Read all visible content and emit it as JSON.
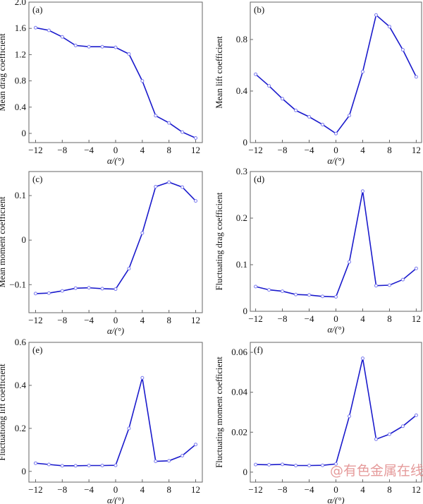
{
  "watermark": "@有色金属在线",
  "line_color": "#1a1acc",
  "marker_color": "#7a7aee",
  "chart_data": [
    {
      "type": "line",
      "panel_label": "(a)",
      "xlabel": "α/(°)",
      "ylabel": "Mean drag coefficient",
      "x": [
        -12,
        -10,
        -8,
        -6,
        -4,
        -2,
        0,
        2,
        4,
        6,
        8,
        10,
        12
      ],
      "values": [
        1.61,
        1.57,
        1.47,
        1.34,
        1.32,
        1.32,
        1.31,
        1.21,
        0.8,
        0.27,
        0.16,
        0.02,
        -0.07
      ],
      "xlim": [
        -13,
        13
      ],
      "ylim": [
        -0.14,
        2.0
      ],
      "xticks": [
        -12,
        -8,
        -4,
        0,
        4,
        8,
        12
      ],
      "yticks": [
        0,
        0.4,
        0.8,
        1.2,
        1.6,
        2.0
      ],
      "yticklabels": [
        "0",
        "0.4",
        "0.8",
        "1.2",
        "1.6",
        "2.0"
      ]
    },
    {
      "type": "line",
      "panel_label": "(b)",
      "xlabel": "α/(°)",
      "ylabel": "Mean lift coefficient",
      "x": [
        -12,
        -10,
        -8,
        -6,
        -4,
        -2,
        0,
        2,
        4,
        6,
        8,
        10,
        12
      ],
      "values": [
        0.53,
        0.44,
        0.34,
        0.25,
        0.2,
        0.14,
        0.07,
        0.21,
        0.55,
        0.99,
        0.9,
        0.72,
        0.51
      ],
      "xlim": [
        -12.8,
        12.8
      ],
      "ylim": [
        0,
        1.09
      ],
      "xticks": [
        -12,
        -8,
        -4,
        0,
        4,
        8,
        12
      ],
      "yticks": [
        0,
        0.4,
        0.8
      ],
      "yticklabels": [
        "0",
        "0.4",
        "0.8"
      ]
    },
    {
      "type": "line",
      "panel_label": "(c)",
      "xlabel": "α/(°)",
      "ylabel": "Mean moment coefficient",
      "x": [
        -12,
        -10,
        -8,
        -6,
        -4,
        -2,
        0,
        2,
        4,
        6,
        8,
        10,
        12
      ],
      "values": [
        -0.12,
        -0.119,
        -0.114,
        -0.108,
        -0.107,
        -0.109,
        -0.11,
        -0.064,
        0.016,
        0.12,
        0.13,
        0.119,
        0.088
      ],
      "xlim": [
        -13,
        13
      ],
      "ylim": [
        -0.163,
        0.154
      ],
      "xticks": [
        -12,
        -8,
        -4,
        0,
        4,
        8,
        12
      ],
      "yticks": [
        -0.1,
        0,
        0.1
      ],
      "yticklabels": [
        "−0.1",
        "0",
        "0.1"
      ]
    },
    {
      "type": "line",
      "panel_label": "(d)",
      "xlabel": "α/(°)",
      "ylabel": "Fluctuating drag coefficient",
      "x": [
        -12,
        -10,
        -8,
        -6,
        -4,
        -2,
        0,
        2,
        4,
        6,
        8,
        10,
        12
      ],
      "values": [
        0.053,
        0.046,
        0.043,
        0.036,
        0.035,
        0.032,
        0.031,
        0.106,
        0.258,
        0.055,
        0.056,
        0.068,
        0.092
      ],
      "xlim": [
        -12.8,
        12.8
      ],
      "ylim": [
        0,
        0.3
      ],
      "xticks": [
        -12,
        -8,
        -4,
        0,
        4,
        8,
        12
      ],
      "yticks": [
        0,
        0.1,
        0.2,
        0.3
      ],
      "yticklabels": [
        "0",
        "0.1",
        "0.2",
        "0.3"
      ]
    },
    {
      "type": "line",
      "panel_label": "(e)",
      "xlabel": "α/(°)",
      "ylabel": "Fluctuationg lift coefficient",
      "x": [
        -12,
        -10,
        -8,
        -6,
        -4,
        -2,
        0,
        2,
        4,
        6,
        8,
        10,
        12
      ],
      "values": [
        0.038,
        0.032,
        0.026,
        0.026,
        0.027,
        0.027,
        0.028,
        0.2,
        0.435,
        0.047,
        0.049,
        0.073,
        0.125
      ],
      "xlim": [
        -13,
        13
      ],
      "ylim": [
        -0.05,
        0.6
      ],
      "xticks": [
        -12,
        -8,
        -4,
        0,
        4,
        8,
        12
      ],
      "yticks": [
        0,
        0.2,
        0.4,
        0.6
      ],
      "yticklabels": [
        "0",
        "0.2",
        "0.4",
        "0.6"
      ]
    },
    {
      "type": "line",
      "panel_label": "(f)",
      "xlabel": "α/(°)",
      "ylabel": "Fluctuating moment coefficient",
      "x": [
        -12,
        -10,
        -8,
        -6,
        -4,
        -2,
        0,
        2,
        4,
        6,
        8,
        10,
        12
      ],
      "values": [
        0.0038,
        0.0037,
        0.0039,
        0.0033,
        0.0033,
        0.0034,
        0.0041,
        0.028,
        0.057,
        0.0165,
        0.019,
        0.023,
        0.0285
      ],
      "xlim": [
        -12.8,
        12.8
      ],
      "ylim": [
        -0.005,
        0.065
      ],
      "xticks": [
        -12,
        -8,
        -4,
        0,
        4,
        8,
        12
      ],
      "yticks": [
        0,
        0.02,
        0.04,
        0.06
      ],
      "yticklabels": [
        "0",
        "0.02",
        "0.04",
        "0.06"
      ]
    }
  ]
}
